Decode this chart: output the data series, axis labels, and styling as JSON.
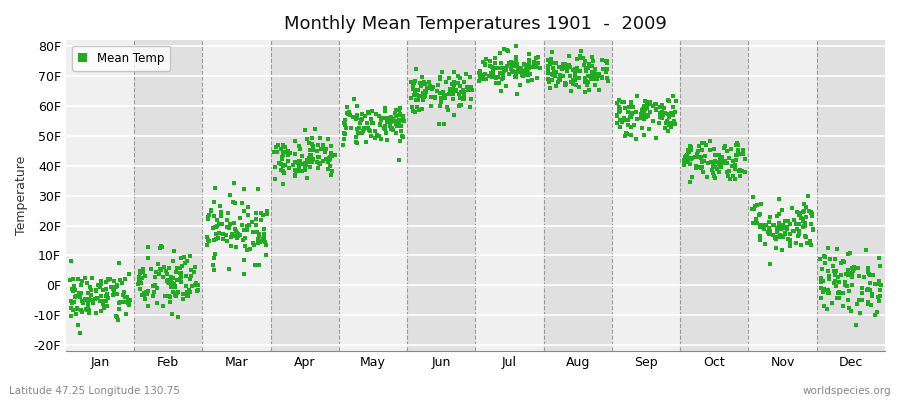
{
  "title": "Monthly Mean Temperatures 1901  -  2009",
  "ylabel": "Temperature",
  "subtitle_left": "Latitude 47.25 Longitude 130.75",
  "subtitle_right": "worldspecies.org",
  "yticks": [
    -20,
    -10,
    0,
    10,
    20,
    30,
    40,
    50,
    60,
    70,
    80
  ],
  "ytick_labels": [
    "-20F",
    "-10F",
    "0F",
    "10F",
    "20F",
    "30F",
    "40F",
    "50F",
    "60F",
    "70F",
    "80F"
  ],
  "ylim": [
    -22,
    82
  ],
  "months": [
    "Jan",
    "Feb",
    "Mar",
    "Apr",
    "May",
    "Jun",
    "Jul",
    "Aug",
    "Sep",
    "Oct",
    "Nov",
    "Dec"
  ],
  "dot_color": "#22aa22",
  "fig_bg_color": "#ffffff",
  "plot_bg_color": "#e8e8e8",
  "band_color_light": "#f0f0f0",
  "band_color_dark": "#e0e0e0",
  "n_years": 109,
  "mean_temps_f": [
    -4.0,
    1.0,
    19.0,
    43.0,
    54.0,
    64.0,
    72.5,
    70.5,
    57.0,
    42.0,
    20.0,
    1.0
  ],
  "std_temps_f": [
    4.5,
    5.5,
    5.5,
    3.5,
    3.5,
    3.5,
    3.0,
    3.0,
    3.5,
    3.5,
    4.5,
    5.5
  ],
  "legend_label": "Mean Temp",
  "dot_size": 7
}
